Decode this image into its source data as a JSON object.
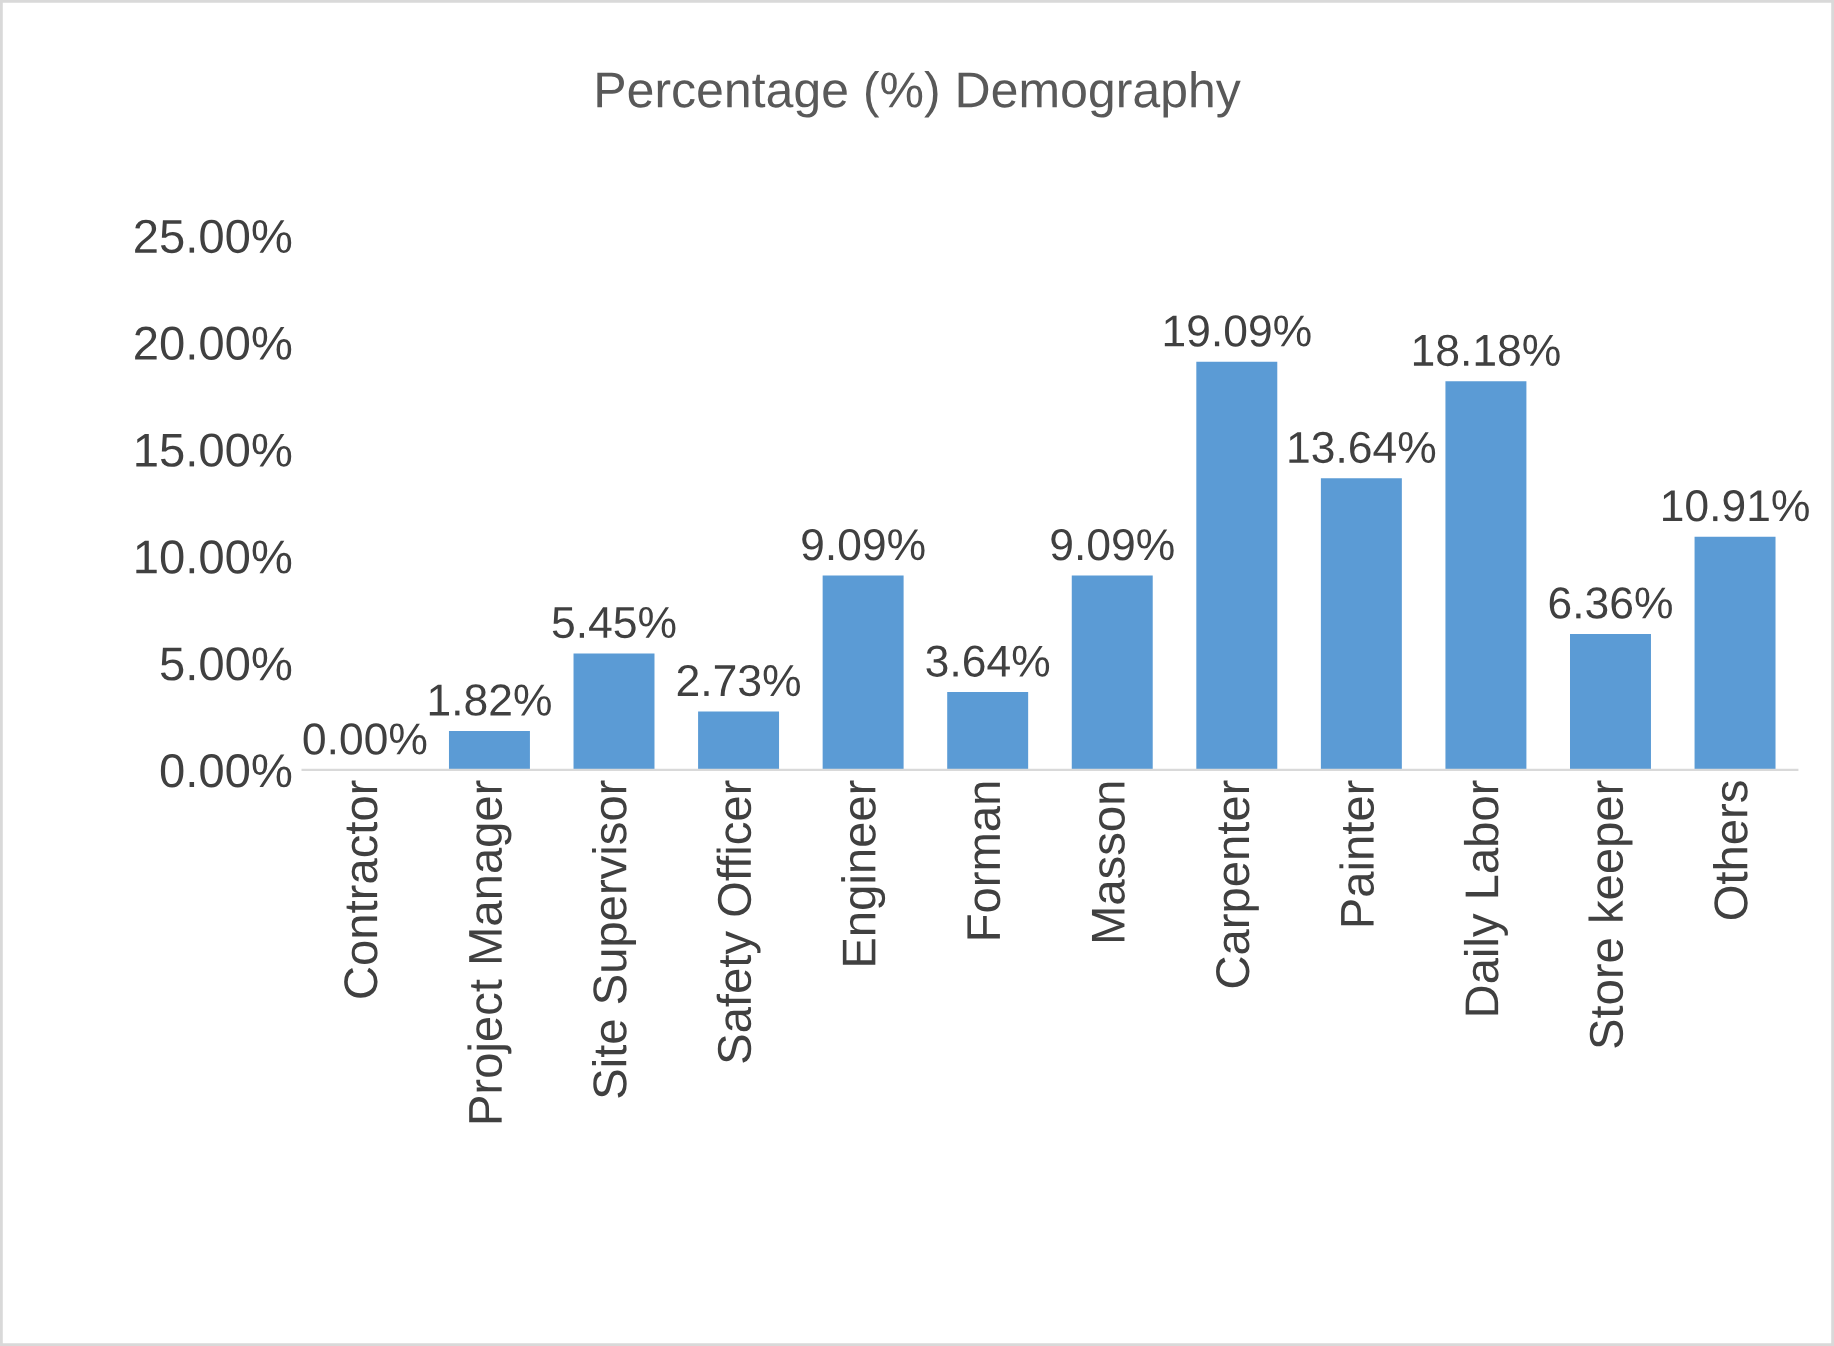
{
  "chart_data": {
    "type": "bar",
    "title": "Percentage (%) Demography",
    "categories": [
      "Contractor",
      "Project Manager",
      "Site Supervisor",
      "Safety Officer",
      "Engineer",
      "Forman",
      "Masson",
      "Carpenter",
      "Painter",
      "Daily Labor",
      "Store keeper",
      "Others"
    ],
    "values": [
      0.0,
      1.82,
      5.45,
      2.73,
      9.09,
      3.64,
      9.09,
      19.09,
      13.64,
      18.18,
      6.36,
      10.91
    ],
    "value_labels": [
      "0.00%",
      "1.82%",
      "5.45%",
      "2.73%",
      "9.09%",
      "3.64%",
      "9.09%",
      "19.09%",
      "13.64%",
      "18.18%",
      "6.36%",
      "10.91%"
    ],
    "color": "#5b9bd5",
    "ylim": [
      0,
      25
    ],
    "yticks": [
      {
        "value": 0,
        "label": "0.00%"
      },
      {
        "value": 5,
        "label": "5.00%"
      },
      {
        "value": 10,
        "label": "10.00%"
      },
      {
        "value": 15,
        "label": "15.00%"
      },
      {
        "value": 20,
        "label": "20.00%"
      },
      {
        "value": 25,
        "label": "25.00%"
      }
    ],
    "grid": false,
    "legend": false
  }
}
